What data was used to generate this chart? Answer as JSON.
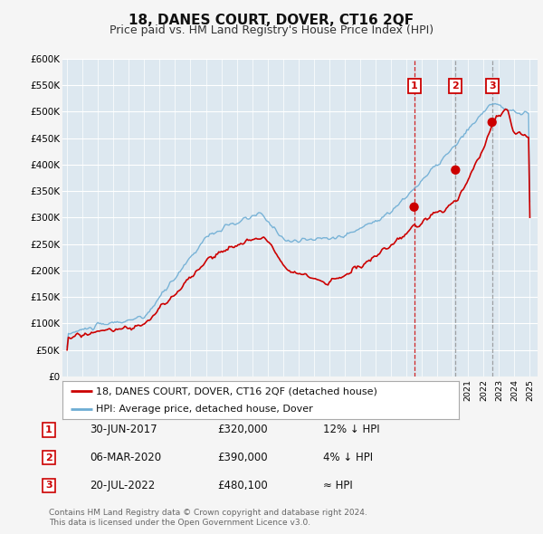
{
  "title": "18, DANES COURT, DOVER, CT16 2QF",
  "subtitle": "Price paid vs. HM Land Registry's House Price Index (HPI)",
  "ylim": [
    0,
    600000
  ],
  "yticks": [
    0,
    50000,
    100000,
    150000,
    200000,
    250000,
    300000,
    350000,
    400000,
    450000,
    500000,
    550000,
    600000
  ],
  "ytick_labels": [
    "£0",
    "£50K",
    "£100K",
    "£150K",
    "£200K",
    "£250K",
    "£300K",
    "£350K",
    "£400K",
    "£450K",
    "£500K",
    "£550K",
    "£600K"
  ],
  "xlim_start": 1994.7,
  "xlim_end": 2025.5,
  "hpi_color": "#6dadd4",
  "price_color": "#cc0000",
  "bg_color": "#dde8f0",
  "fig_bg_color": "#f5f5f5",
  "grid_color": "#c8d8e8",
  "sale1_x": 2017.497,
  "sale1_y": 320000,
  "sale2_x": 2020.18,
  "sale2_y": 390000,
  "sale3_x": 2022.55,
  "sale3_y": 480100,
  "legend_label1": "18, DANES COURT, DOVER, CT16 2QF (detached house)",
  "legend_label2": "HPI: Average price, detached house, Dover",
  "table_rows": [
    {
      "num": "1",
      "date": "30-JUN-2017",
      "price": "£320,000",
      "hpi": "12% ↓ HPI"
    },
    {
      "num": "2",
      "date": "06-MAR-2020",
      "price": "£390,000",
      "hpi": "4% ↓ HPI"
    },
    {
      "num": "3",
      "date": "20-JUL-2022",
      "price": "£480,100",
      "hpi": "≈ HPI"
    }
  ],
  "footnote": "Contains HM Land Registry data © Crown copyright and database right 2024.\nThis data is licensed under the Open Government Licence v3.0."
}
